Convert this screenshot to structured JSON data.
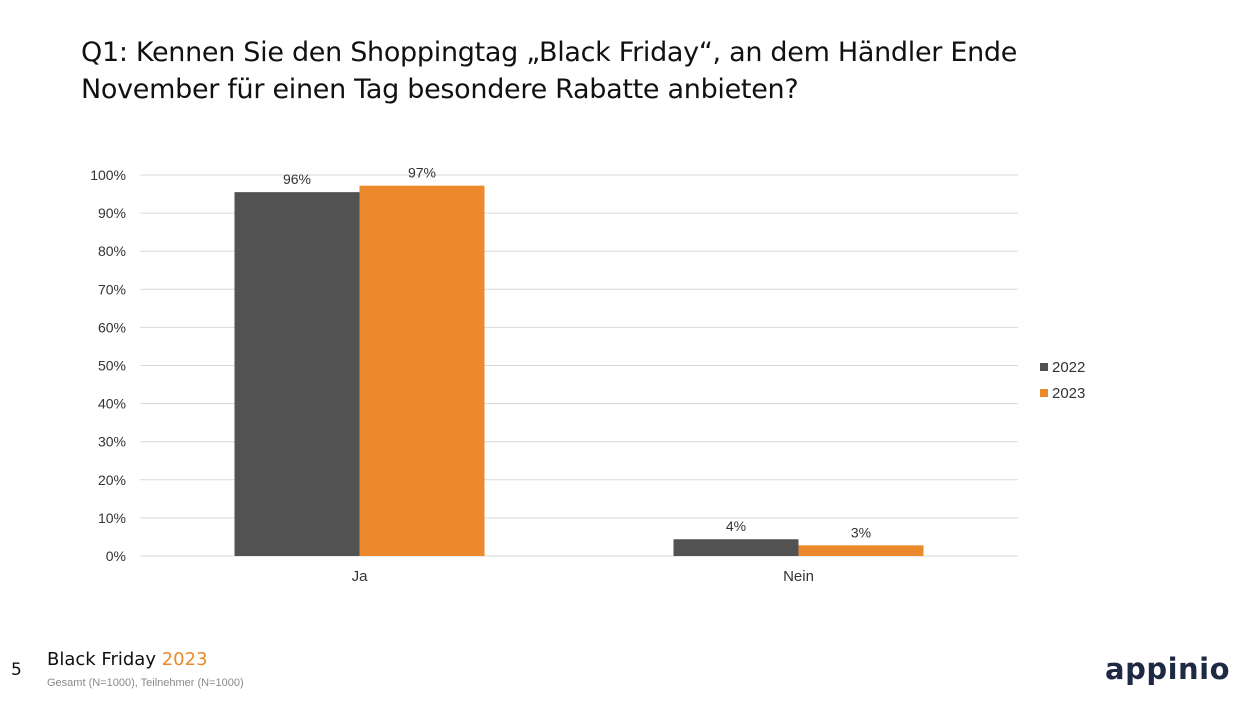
{
  "slide": {
    "title_line1": "Q1: Kennen Sie den Shoppingtag „Black Friday“, an dem Händler Ende",
    "title_line2": "November für einen Tag besondere Rabatte anbieten?",
    "page_number": "5",
    "footer_title": "Black Friday",
    "footer_year": "2023",
    "footer_sub": "Gesamt (N=1000), Teilnehmer (N=1000)",
    "logo_text": "appinio"
  },
  "colors": {
    "series_2022": "#525252",
    "series_2023": "#eb892c",
    "gridline": "#d9d9d9",
    "axis_text": "#333333"
  },
  "chart_data": {
    "type": "bar",
    "title": "",
    "xlabel": "",
    "ylabel": "",
    "categories": [
      "Ja",
      "Nein"
    ],
    "series": [
      {
        "name": "2022",
        "values": [
          95.5,
          4.4
        ],
        "labels": [
          "96%",
          "4%"
        ]
      },
      {
        "name": "2023",
        "values": [
          97.2,
          2.8
        ],
        "labels": [
          "97%",
          "3%"
        ]
      }
    ],
    "ylim": [
      0,
      100
    ],
    "yticks": [
      0,
      10,
      20,
      30,
      40,
      50,
      60,
      70,
      80,
      90,
      100
    ],
    "ytick_labels": [
      "0%",
      "10%",
      "20%",
      "30%",
      "40%",
      "50%",
      "60%",
      "70%",
      "80%",
      "90%",
      "100%"
    ],
    "grid": true,
    "legend": "right"
  }
}
